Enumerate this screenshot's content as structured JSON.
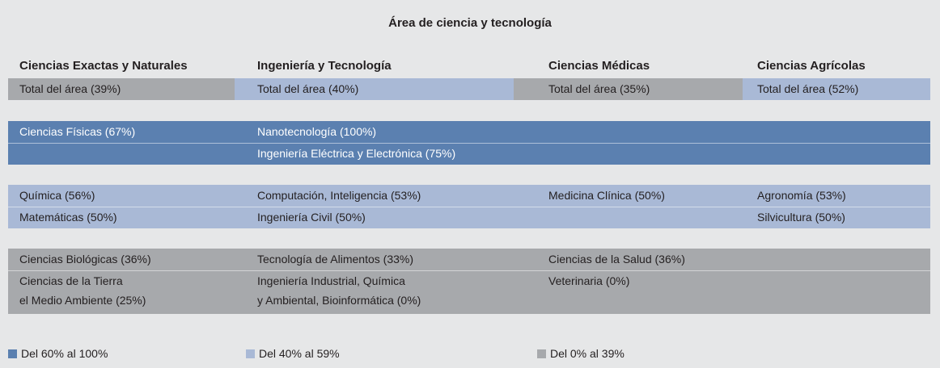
{
  "title": "Área de ciencia y tecnología",
  "columns": [
    {
      "name": "Ciencias Exactas y Naturales",
      "total": "Total del área (39%)",
      "color": "#a7a9ac"
    },
    {
      "name": "Ingeniería y Tecnología",
      "total": "Total del área (40%)",
      "color": "#a9b9d6"
    },
    {
      "name": "Ciencias Médicas",
      "total": "Total del área (35%)",
      "color": "#a7a9ac"
    },
    {
      "name": "Ciencias Agrícolas",
      "total": "Total del área (52%)",
      "color": "#a9b9d6"
    }
  ],
  "bands": [
    {
      "color": "#5b80b0",
      "text_color": "#ffffff",
      "rows": [
        [
          "Ciencias Físicas (67%)",
          "Nanotecnología (100%)",
          null,
          null
        ],
        [
          null,
          "Ingeniería Eléctrica y Electrónica (75%)",
          null,
          null
        ]
      ]
    },
    {
      "color": "#a9b9d6",
      "text_color": "#231f20",
      "rows": [
        [
          "Química (56%)",
          "Computación, Inteligencia (53%)",
          "Medicina Clínica (50%)",
          "Agronomía (53%)"
        ],
        [
          "Matemáticas (50%)",
          "Ingeniería Civil (50%)",
          null,
          "Silvicultura (50%)"
        ]
      ]
    },
    {
      "color": "#a7a9ac",
      "text_color": "#231f20",
      "rows": [
        [
          "Ciencias Biológicas (36%)",
          "Tecnología de Alimentos (33%)",
          "Ciencias de la Salud (36%)",
          null
        ],
        [
          "Ciencias de la Tierra\nel Medio Ambiente (25%)",
          "Ingeniería Industrial, Química\ny Ambiental, Bioinformática (0%)",
          "Veterinaria (0%)",
          null
        ]
      ]
    }
  ],
  "legend": [
    {
      "label": "Del 60% al 100%",
      "color": "#5b80b0"
    },
    {
      "label": "Del 40% al 59%",
      "color": "#a9b9d6"
    },
    {
      "label": "Del 0% al 39%",
      "color": "#a7a9ac"
    }
  ]
}
